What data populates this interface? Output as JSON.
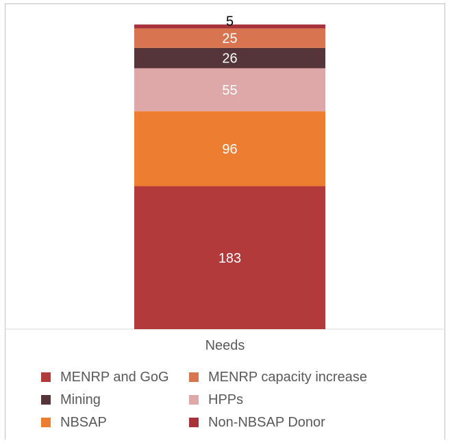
{
  "chart_data": {
    "type": "bar",
    "stacked": true,
    "categories": [
      "Needs"
    ],
    "ylim": [
      0,
      395
    ],
    "series": [
      {
        "name": "MENRP and GoG",
        "values": [
          183
        ],
        "color": "#b33a3a"
      },
      {
        "name": "NBSAP",
        "values": [
          96
        ],
        "color": "#ed7d31"
      },
      {
        "name": "HPPs",
        "values": [
          55
        ],
        "color": "#dfa8a8"
      },
      {
        "name": "Mining",
        "values": [
          26
        ],
        "color": "#55343a"
      },
      {
        "name": "MENRP capacity increase",
        "values": [
          25
        ],
        "color": "#d87550"
      },
      {
        "name": "Non-NBSAP Donor",
        "values": [
          5
        ],
        "color": "#a8323c"
      }
    ],
    "legend_order": [
      "MENRP and GoG",
      "MENRP capacity increase",
      "Mining",
      "HPPs",
      "NBSAP",
      "Non-NBSAP Donor"
    ],
    "legend_position": "bottom",
    "data_labels": true,
    "grid": false
  }
}
